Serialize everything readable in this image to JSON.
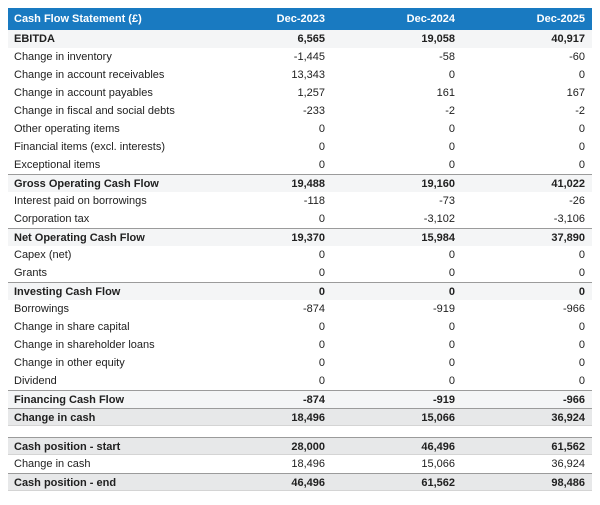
{
  "chart_data": {
    "type": "table",
    "title": "Cash Flow Statement (£)",
    "columns": [
      "Dec-2023",
      "Dec-2024",
      "Dec-2025"
    ],
    "rows": [
      {
        "label": "EBITDA",
        "values": [
          6565,
          19058,
          40917
        ]
      },
      {
        "label": "Change in inventory",
        "values": [
          -1445,
          -58,
          -60
        ]
      },
      {
        "label": "Change in account receivables",
        "values": [
          13343,
          0,
          0
        ]
      },
      {
        "label": "Change in account payables",
        "values": [
          1257,
          161,
          167
        ]
      },
      {
        "label": "Change in fiscal and social debts",
        "values": [
          -233,
          -2,
          -2
        ]
      },
      {
        "label": "Other operating items",
        "values": [
          0,
          0,
          0
        ]
      },
      {
        "label": "Financial items (excl. interests)",
        "values": [
          0,
          0,
          0
        ]
      },
      {
        "label": "Exceptional items",
        "values": [
          0,
          0,
          0
        ]
      },
      {
        "label": "Gross Operating Cash Flow",
        "values": [
          19488,
          19160,
          41022
        ]
      },
      {
        "label": "Interest paid on borrowings",
        "values": [
          -118,
          -73,
          -26
        ]
      },
      {
        "label": "Corporation tax",
        "values": [
          0,
          -3102,
          -3106
        ]
      },
      {
        "label": "Net Operating Cash Flow",
        "values": [
          19370,
          15984,
          37890
        ]
      },
      {
        "label": "Capex (net)",
        "values": [
          0,
          0,
          0
        ]
      },
      {
        "label": "Grants",
        "values": [
          0,
          0,
          0
        ]
      },
      {
        "label": "Investing Cash Flow",
        "values": [
          0,
          0,
          0
        ]
      },
      {
        "label": "Borrowings",
        "values": [
          -874,
          -919,
          -966
        ]
      },
      {
        "label": "Change in share capital",
        "values": [
          0,
          0,
          0
        ]
      },
      {
        "label": "Change in shareholder loans",
        "values": [
          0,
          0,
          0
        ]
      },
      {
        "label": "Change in other equity",
        "values": [
          0,
          0,
          0
        ]
      },
      {
        "label": "Dividend",
        "values": [
          0,
          0,
          0
        ]
      },
      {
        "label": "Financing Cash Flow",
        "values": [
          -874,
          -919,
          -966
        ]
      },
      {
        "label": "Change in cash",
        "values": [
          18496,
          15066,
          36924
        ]
      },
      {
        "label": "Cash position - start",
        "values": [
          28000,
          46496,
          61562
        ]
      },
      {
        "label": "Change in cash",
        "values": [
          18496,
          15066,
          36924
        ]
      },
      {
        "label": "Cash position - end",
        "values": [
          46496,
          61562,
          98486
        ]
      }
    ]
  },
  "table": {
    "header": {
      "title": "Cash Flow Statement (£)",
      "columns": [
        "Dec-2023",
        "Dec-2024",
        "Dec-2025"
      ]
    },
    "body_rows": [
      {
        "label": "EBITDA",
        "values": [
          "6,565",
          "19,058",
          "40,917"
        ],
        "style": "emphasis"
      },
      {
        "label": "Change in inventory",
        "values": [
          "-1,445",
          "-58",
          "-60"
        ],
        "style": "plain"
      },
      {
        "label": "Change in account receivables",
        "values": [
          "13,343",
          "0",
          "0"
        ],
        "style": "plain"
      },
      {
        "label": "Change in account payables",
        "values": [
          "1,257",
          "161",
          "167"
        ],
        "style": "plain"
      },
      {
        "label": "Change in fiscal and social debts",
        "values": [
          "-233",
          "-2",
          "-2"
        ],
        "style": "plain"
      },
      {
        "label": "Other operating items",
        "values": [
          "0",
          "0",
          "0"
        ],
        "style": "plain"
      },
      {
        "label": "Financial items (excl. interests)",
        "values": [
          "0",
          "0",
          "0"
        ],
        "style": "plain"
      },
      {
        "label": "Exceptional items",
        "values": [
          "0",
          "0",
          "0"
        ],
        "style": "plain"
      },
      {
        "label": "Gross Operating Cash Flow",
        "values": [
          "19,488",
          "19,160",
          "41,022"
        ],
        "style": "section"
      },
      {
        "label": "Interest paid on borrowings",
        "values": [
          "-118",
          "-73",
          "-26"
        ],
        "style": "plain"
      },
      {
        "label": "Corporation tax",
        "values": [
          "0",
          "-3,102",
          "-3,106"
        ],
        "style": "plain"
      },
      {
        "label": "Net Operating Cash Flow",
        "values": [
          "19,370",
          "15,984",
          "37,890"
        ],
        "style": "section"
      },
      {
        "label": "Capex (net)",
        "values": [
          "0",
          "0",
          "0"
        ],
        "style": "plain"
      },
      {
        "label": "Grants",
        "values": [
          "0",
          "0",
          "0"
        ],
        "style": "plain"
      },
      {
        "label": "Investing Cash Flow",
        "values": [
          "0",
          "0",
          "0"
        ],
        "style": "section"
      },
      {
        "label": "Borrowings",
        "values": [
          "-874",
          "-919",
          "-966"
        ],
        "style": "plain"
      },
      {
        "label": "Change in share capital",
        "values": [
          "0",
          "0",
          "0"
        ],
        "style": "plain"
      },
      {
        "label": "Change in shareholder loans",
        "values": [
          "0",
          "0",
          "0"
        ],
        "style": "plain"
      },
      {
        "label": "Change in other equity",
        "values": [
          "0",
          "0",
          "0"
        ],
        "style": "plain"
      },
      {
        "label": "Dividend",
        "values": [
          "0",
          "0",
          "0"
        ],
        "style": "plain"
      },
      {
        "label": "Financing Cash Flow",
        "values": [
          "-874",
          "-919",
          "-966"
        ],
        "style": "section"
      },
      {
        "label": "Change in cash",
        "values": [
          "18,496",
          "15,066",
          "36,924"
        ],
        "style": "total"
      }
    ],
    "footer_rows": [
      {
        "label": "Cash position - start",
        "values": [
          "28,000",
          "46,496",
          "61,562"
        ],
        "style": "total"
      },
      {
        "label": "Change in cash",
        "values": [
          "18,496",
          "15,066",
          "36,924"
        ],
        "style": "plain"
      },
      {
        "label": "Cash position - end",
        "values": [
          "46,496",
          "61,562",
          "98,486"
        ],
        "style": "total"
      }
    ]
  },
  "colors": {
    "header_bg": "#197ac1",
    "header_text": "#ffffff",
    "section_row_bg": "#f4f5f6",
    "total_row_bg": "#e7e8e9",
    "strong_rule": "#9b9b9b",
    "light_rule": "#d4d4d4",
    "body_text": "#212121"
  }
}
